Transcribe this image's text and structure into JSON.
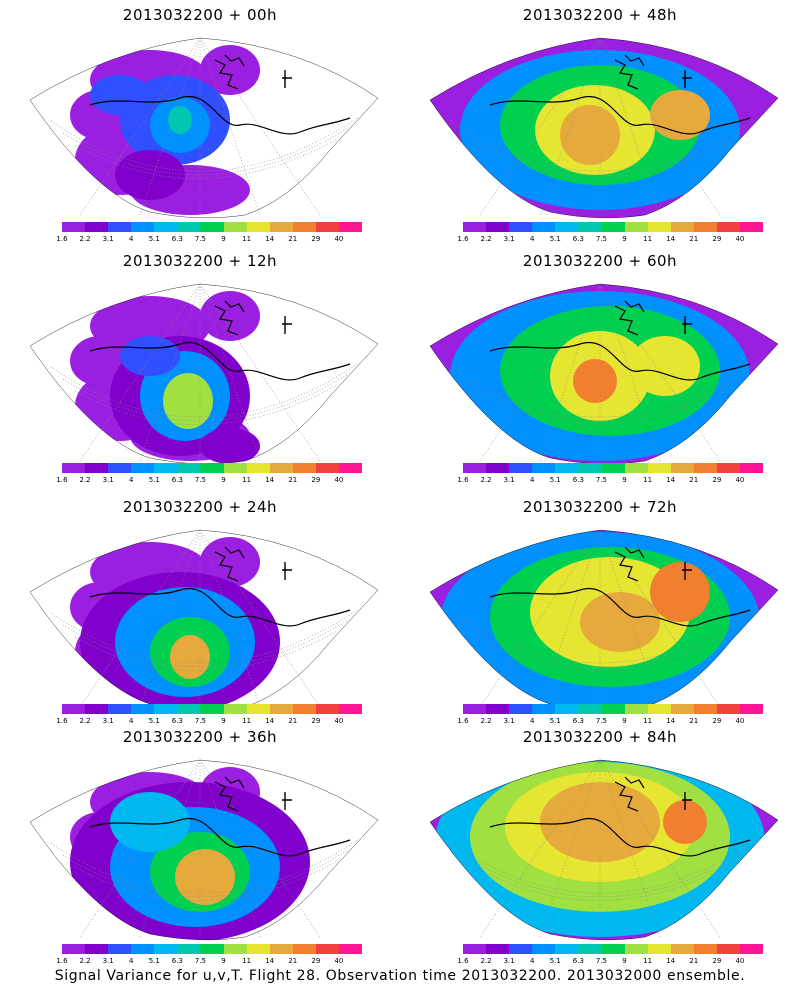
{
  "figure": {
    "caption": "Signal Variance for u,v,T. Flight 28. Observation time 2013032200. 2013032000 ensemble."
  },
  "colorbar": {
    "labels": [
      "1.6",
      "2.2",
      "3.1",
      "4",
      "5.1",
      "6.3",
      "7.5",
      "9",
      "11",
      "14",
      "21",
      "29",
      "40"
    ],
    "colors": [
      "#9b1fe0",
      "#8000cc",
      "#3050ff",
      "#0090ff",
      "#00b8f0",
      "#00c8b0",
      "#00d050",
      "#a0e040",
      "#e6e632",
      "#e6aa3c",
      "#f08030",
      "#f04040",
      "#ff1493"
    ]
  },
  "panels": [
    {
      "title": "2013032200 + 00h",
      "id": "p00"
    },
    {
      "title": "2013032200 + 48h",
      "id": "p48"
    },
    {
      "title": "2013032200 + 12h",
      "id": "p12"
    },
    {
      "title": "2013032200 + 60h",
      "id": "p60"
    },
    {
      "title": "2013032200 + 24h",
      "id": "p24"
    },
    {
      "title": "2013032200 + 72h",
      "id": "p72"
    },
    {
      "title": "2013032200 + 36h",
      "id": "p36"
    },
    {
      "title": "2013032200 + 84h",
      "id": "p84"
    }
  ]
}
